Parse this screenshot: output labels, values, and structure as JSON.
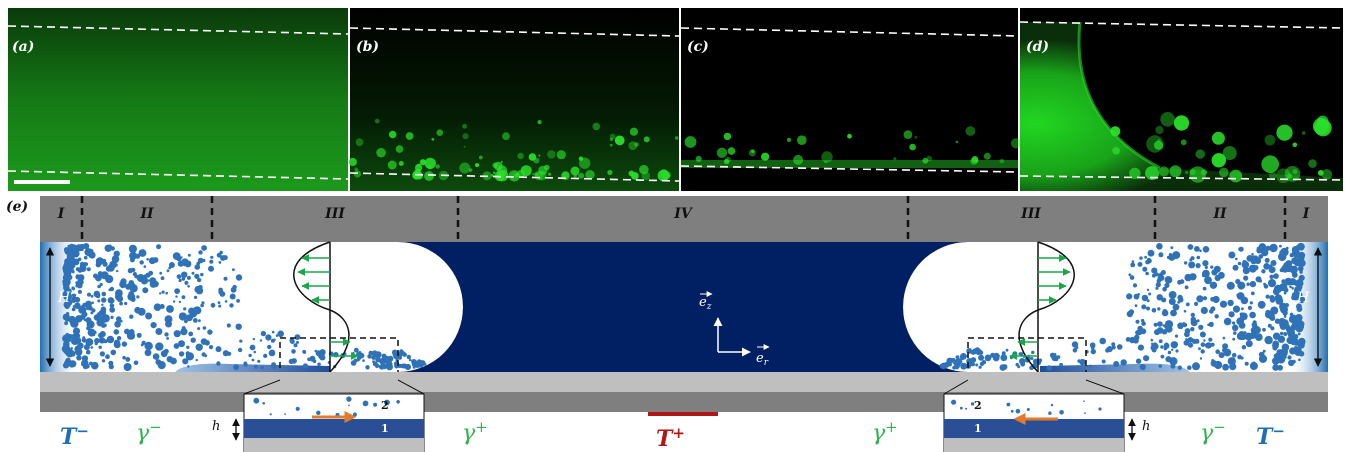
{
  "panels": [
    {
      "label": "(a)"
    },
    {
      "label": "(b)"
    },
    {
      "label": "(c)"
    },
    {
      "label": "(d)"
    }
  ],
  "schematic": {
    "label": "(e)",
    "zones": [
      "I",
      "II",
      "III",
      "IV",
      "III",
      "II",
      "I"
    ],
    "height_label": "H",
    "film_height_label": "h",
    "axis_z": "e",
    "axis_z_sub": "z",
    "axis_r": "e",
    "axis_r_sub": "r",
    "layer_top": "2",
    "layer_bottom": "1",
    "temp_cold": "T",
    "temp_hot": "T",
    "temp_minus": "−",
    "temp_plus": "+",
    "gamma": "γ",
    "gamma_minus": "−",
    "gamma_plus": "+"
  },
  "colors": {
    "channel_blue": "#012063",
    "droplet_blue": "#2f72b8",
    "arrow_green": "#1aa64a",
    "gamma_green": "#2fb34a",
    "temp_blue": "#1f6fb5",
    "temp_red": "#b01818",
    "arrow_orange": "#e07b2e",
    "band_gray": "#7f7f7f",
    "wall_gray": "#bfbfbf",
    "film_blue": "#2b4f96"
  }
}
